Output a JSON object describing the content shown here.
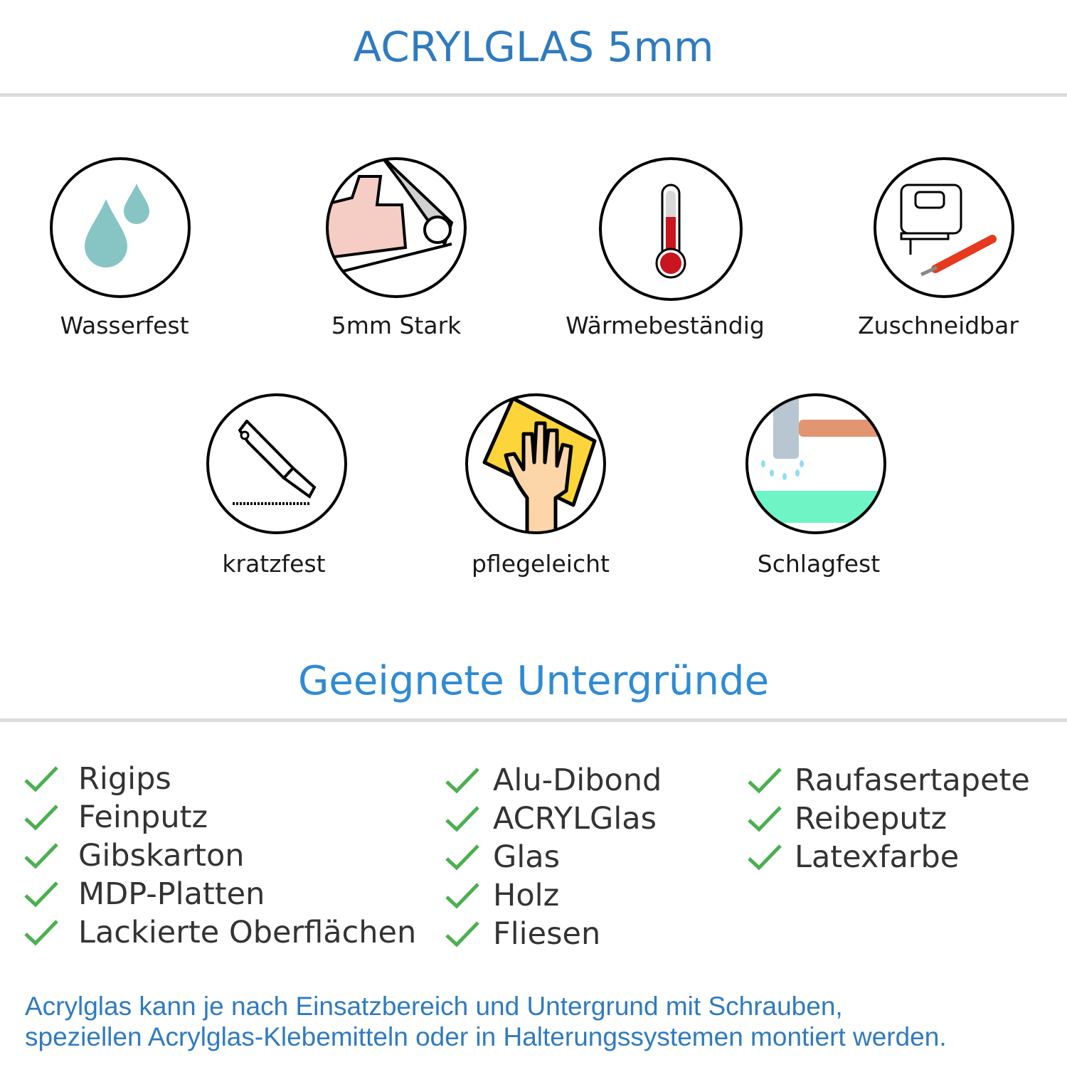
{
  "header": {
    "title": "ACRYLGLAS 5mm"
  },
  "features": [
    {
      "label": "Wasserfest",
      "icon": "water-drops-icon"
    },
    {
      "label": "5mm Stark",
      "icon": "strong-arm-icon"
    },
    {
      "label": "Wärmebeständig",
      "icon": "thermometer-icon"
    },
    {
      "label": "Zuschneidbar",
      "icon": "jigsaw-cutter-icon"
    },
    {
      "label": "kratzfest",
      "icon": "box-cutter-icon"
    },
    {
      "label": "pflegeleicht",
      "icon": "cleaning-cloth-hand-icon"
    },
    {
      "label": "Schlagfest",
      "icon": "hammer-icon"
    }
  ],
  "surfaces": {
    "title": "Geeignete Untergründe",
    "columns": [
      [
        "Rigips",
        "Feinputz",
        "Gibskarton",
        "MDP-Platten",
        "Lackierte Oberflächen"
      ],
      [
        "Alu-Dibond",
        "ACRYLGlas",
        "Glas",
        "Holz",
        "Fliesen"
      ],
      [
        "Raufasertapete",
        "Reibeputz",
        "Latexfarbe"
      ]
    ]
  },
  "footer": {
    "line1": "Acrylglas kann je nach Einsatzbereich und Untergrund mit Schrauben,",
    "line2": "speziellen Acrylglas-Klebemitteln oder in Halterungssystemen montiert werden."
  },
  "colors": {
    "title": "#2f7bbf",
    "check": "#4caf50",
    "text": "#333333"
  }
}
